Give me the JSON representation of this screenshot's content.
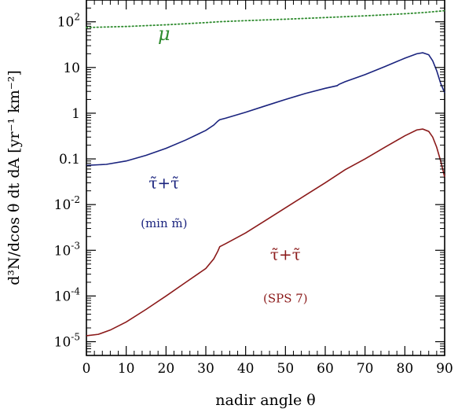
{
  "chart_data": {
    "type": "line",
    "xlabel": "nadir angle θ",
    "ylabel": "d³N/dcos θ dt dA [yr⁻¹ km⁻²]",
    "xlim": [
      0,
      90
    ],
    "ylim": [
      5e-06,
      300
    ],
    "yscale": "log",
    "grid": false,
    "x_ticks": [
      0,
      10,
      20,
      30,
      40,
      50,
      60,
      70,
      80,
      90
    ],
    "y_ticks": [
      {
        "value": 1e-05,
        "base": "10",
        "exp": "-5"
      },
      {
        "value": 0.0001,
        "base": "10",
        "exp": "-4"
      },
      {
        "value": 0.001,
        "base": "10",
        "exp": "-3"
      },
      {
        "value": 0.01,
        "base": "10",
        "exp": "-2"
      },
      {
        "value": 0.1,
        "base": "0.1",
        "exp": ""
      },
      {
        "value": 1,
        "base": "1",
        "exp": ""
      },
      {
        "value": 10,
        "base": "10",
        "exp": ""
      },
      {
        "value": 100,
        "base": "10",
        "exp": "2"
      }
    ],
    "series": [
      {
        "color": "#2e8b2e",
        "dash": "dotted",
        "x": [
          0,
          10,
          20,
          30,
          33,
          40,
          50,
          60,
          70,
          80,
          85,
          90
        ],
        "y": [
          75,
          79,
          86,
          96,
          100,
          106,
          114,
          124,
          135,
          150,
          160,
          175
        ]
      },
      {
        "color": "#1a237e",
        "dash": "solid",
        "x": [
          0,
          5,
          10,
          15,
          20,
          25,
          30,
          32,
          33,
          33.5,
          35,
          40,
          45,
          50,
          55,
          60,
          63,
          63.5,
          65,
          70,
          75,
          80,
          83,
          84.5,
          86,
          87,
          88,
          89,
          90
        ],
        "y": [
          0.072,
          0.076,
          0.09,
          0.12,
          0.17,
          0.26,
          0.42,
          0.55,
          0.67,
          0.72,
          0.78,
          1.05,
          1.45,
          2.0,
          2.7,
          3.5,
          4.0,
          4.3,
          4.9,
          7.0,
          10.5,
          16.0,
          20.0,
          21.0,
          19.0,
          14.0,
          8.5,
          4.5,
          2.8
        ]
      },
      {
        "color": "#8b1a1a",
        "dash": "solid",
        "x": [
          0,
          3,
          6,
          10,
          15,
          20,
          25,
          30,
          32,
          33,
          33.5,
          35,
          40,
          45,
          50,
          55,
          60,
          65,
          70,
          75,
          80,
          83,
          84.5,
          86,
          87,
          88,
          89,
          90
        ],
        "y": [
          1.35e-05,
          1.45e-05,
          1.8e-05,
          2.7e-05,
          5.1e-05,
          0.0001,
          0.0002,
          0.0004,
          0.00065,
          0.00095,
          0.0012,
          0.0014,
          0.0024,
          0.0045,
          0.0085,
          0.016,
          0.03,
          0.058,
          0.1,
          0.18,
          0.32,
          0.43,
          0.45,
          0.4,
          0.3,
          0.18,
          0.09,
          0.04
        ]
      }
    ],
    "annotations": [
      {
        "text": "μ",
        "color": "#2e8b2e",
        "x": 19.5,
        "y": 40,
        "size": 24,
        "italic": true
      },
      {
        "text": "τ̃+τ̃",
        "color": "#1a237e",
        "x": 19.5,
        "y": 0.0228,
        "size": 20
      },
      {
        "text": "(min m̃)",
        "color": "#1a237e",
        "x": 19.5,
        "y": 0.0032,
        "size": 15
      },
      {
        "text": "τ̃+τ̃",
        "color": "#8b1a1a",
        "x": 50,
        "y": 0.00062,
        "size": 20
      },
      {
        "text": "(SPS 7)",
        "color": "#8b1a1a",
        "x": 50,
        "y": 7.3e-05,
        "size": 15
      }
    ]
  }
}
